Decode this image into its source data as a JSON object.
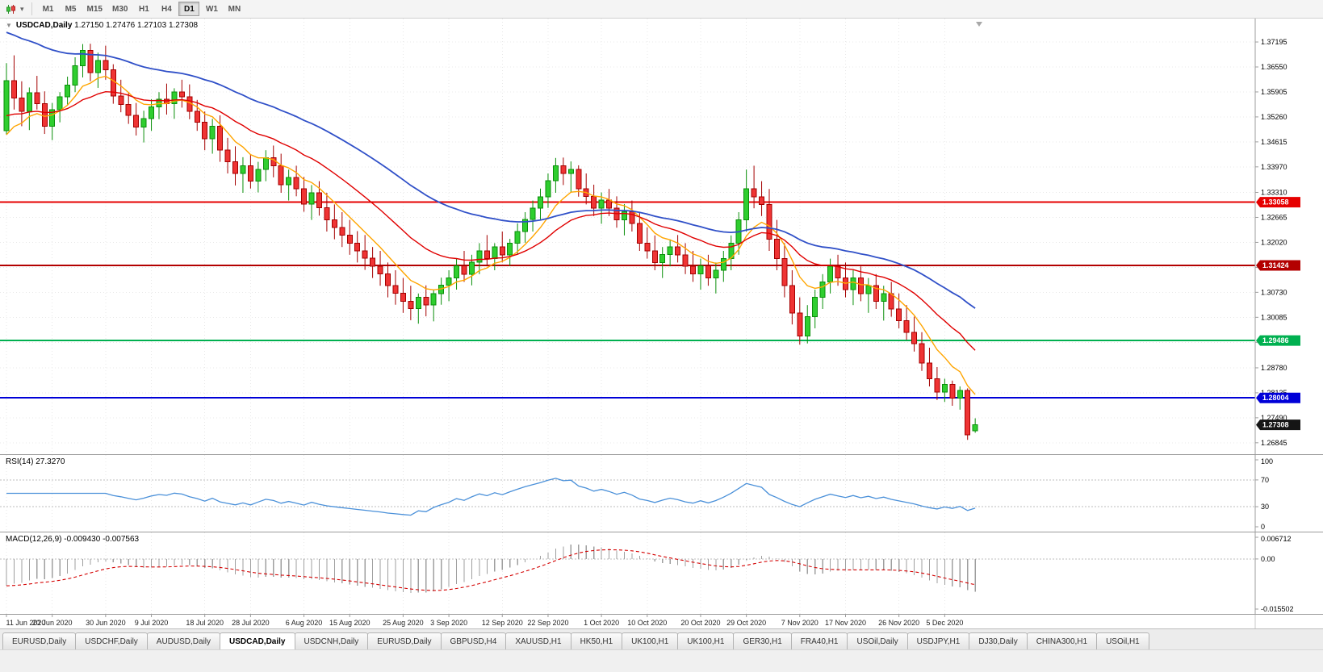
{
  "icons": {
    "one_click_toggle": "▼",
    "dropdown_caret": "▾"
  },
  "toolbar": {
    "timeframes": [
      "M1",
      "M5",
      "M15",
      "M30",
      "H1",
      "H4",
      "D1",
      "W1",
      "MN"
    ],
    "active_timeframe": "D1"
  },
  "main_chart": {
    "title_symbol": "USDCAD,Daily",
    "title_ohlc": "1.27150 1.27476 1.27103 1.27308",
    "price_axis_ticks": [
      "1.37195",
      "1.36550",
      "1.35905",
      "1.35260",
      "1.34615",
      "1.33970",
      "1.33310",
      "1.32665",
      "1.32020",
      "1.31375",
      "1.30730",
      "1.30085",
      "1.29440",
      "1.28780",
      "1.28135",
      "1.27490",
      "1.26845"
    ],
    "price_range": {
      "top": 1.378,
      "bottom": 1.2655
    },
    "hlines": [
      {
        "price": 1.33058,
        "label": "1.33058",
        "color": "#e60000"
      },
      {
        "price": 1.31424,
        "label": "1.31424",
        "color": "#b30000"
      },
      {
        "price": 1.29486,
        "label": "1.29486",
        "color": "#00b050"
      },
      {
        "price": 1.28004,
        "label": "1.28004",
        "color": "#0000d8"
      }
    ],
    "current_price": {
      "value": 1.27308,
      "label": "1.27308",
      "badge_color": "#151515"
    },
    "moving_averages": [
      {
        "period": 8,
        "color": "#ffa500",
        "seed": 1.344,
        "width": 1.4
      },
      {
        "period": 21,
        "color": "#e00000",
        "seed": 1.352,
        "width": 1.4
      },
      {
        "period": 45,
        "color": "#3050c8",
        "seed": 1.375,
        "width": 1.8
      }
    ],
    "colors": {
      "up_fill": "#2fce2f",
      "up_border": "#0a8f0a",
      "down_fill": "#ef3434",
      "down_border": "#a40000",
      "grid": "#e8e8e8"
    }
  },
  "chart_data": {
    "type": "candlestick",
    "symbol": "USDCAD",
    "timeframe": "Daily",
    "ohlc": [
      [
        1.349,
        1.3665,
        1.348,
        1.362
      ],
      [
        1.362,
        1.3685,
        1.3545,
        1.3575
      ],
      [
        1.3575,
        1.3618,
        1.3502,
        1.354
      ],
      [
        1.354,
        1.3602,
        1.3492,
        1.3588
      ],
      [
        1.3588,
        1.3632,
        1.3545,
        1.356
      ],
      [
        1.356,
        1.3592,
        1.3482,
        1.3502
      ],
      [
        1.3502,
        1.3562,
        1.3466,
        1.3545
      ],
      [
        1.3545,
        1.359,
        1.3512,
        1.3578
      ],
      [
        1.3578,
        1.363,
        1.3558,
        1.3608
      ],
      [
        1.3608,
        1.368,
        1.359,
        1.3658
      ],
      [
        1.3658,
        1.3714,
        1.3628,
        1.3698
      ],
      [
        1.3698,
        1.3715,
        1.3618,
        1.364
      ],
      [
        1.364,
        1.3692,
        1.3601,
        1.3672
      ],
      [
        1.3672,
        1.371,
        1.3622,
        1.3648
      ],
      [
        1.3648,
        1.3662,
        1.356,
        1.358
      ],
      [
        1.358,
        1.3622,
        1.3538,
        1.3558
      ],
      [
        1.3558,
        1.359,
        1.3508,
        1.353
      ],
      [
        1.353,
        1.3562,
        1.3478,
        1.35
      ],
      [
        1.35,
        1.3542,
        1.346,
        1.3522
      ],
      [
        1.3522,
        1.3572,
        1.349,
        1.3552
      ],
      [
        1.3552,
        1.359,
        1.352,
        1.3572
      ],
      [
        1.3572,
        1.3612,
        1.3532,
        1.356
      ],
      [
        1.356,
        1.36,
        1.3521,
        1.359
      ],
      [
        1.359,
        1.3622,
        1.355,
        1.3578
      ],
      [
        1.3578,
        1.361,
        1.352,
        1.354
      ],
      [
        1.354,
        1.357,
        1.349,
        1.3512
      ],
      [
        1.3512,
        1.354,
        1.344,
        1.347
      ],
      [
        1.347,
        1.3521,
        1.3431,
        1.3502
      ],
      [
        1.3502,
        1.353,
        1.341,
        1.344
      ],
      [
        1.344,
        1.3472,
        1.338,
        1.341
      ],
      [
        1.341,
        1.345,
        1.3349,
        1.338
      ],
      [
        1.338,
        1.3422,
        1.333,
        1.34
      ],
      [
        1.34,
        1.343,
        1.3341,
        1.336
      ],
      [
        1.336,
        1.341,
        1.3331,
        1.339
      ],
      [
        1.339,
        1.344,
        1.336,
        1.3421
      ],
      [
        1.3421,
        1.3452,
        1.337,
        1.34
      ],
      [
        1.34,
        1.3431,
        1.333,
        1.3351
      ],
      [
        1.3351,
        1.339,
        1.331,
        1.337
      ],
      [
        1.337,
        1.34,
        1.3321,
        1.334
      ],
      [
        1.334,
        1.3371,
        1.3281,
        1.3301
      ],
      [
        1.3301,
        1.335,
        1.326,
        1.333
      ],
      [
        1.333,
        1.336,
        1.3271,
        1.3291
      ],
      [
        1.3291,
        1.333,
        1.323,
        1.326
      ],
      [
        1.326,
        1.33,
        1.321,
        1.324
      ],
      [
        1.324,
        1.328,
        1.319,
        1.3221
      ],
      [
        1.3221,
        1.326,
        1.317,
        1.32
      ],
      [
        1.32,
        1.3231,
        1.315,
        1.318
      ],
      [
        1.318,
        1.3221,
        1.3131,
        1.3161
      ],
      [
        1.3161,
        1.319,
        1.311,
        1.314
      ],
      [
        1.314,
        1.318,
        1.309,
        1.3121
      ],
      [
        1.3121,
        1.315,
        1.306,
        1.309
      ],
      [
        1.309,
        1.313,
        1.3041,
        1.3071
      ],
      [
        1.3071,
        1.311,
        1.302,
        1.305
      ],
      [
        1.305,
        1.309,
        1.3001,
        1.3031
      ],
      [
        1.3031,
        1.307,
        1.2992,
        1.306
      ],
      [
        1.306,
        1.3091,
        1.3011,
        1.304
      ],
      [
        1.304,
        1.308,
        1.2998,
        1.307
      ],
      [
        1.307,
        1.3111,
        1.3041,
        1.3091
      ],
      [
        1.3091,
        1.313,
        1.305,
        1.311
      ],
      [
        1.311,
        1.316,
        1.308,
        1.3141
      ],
      [
        1.3141,
        1.318,
        1.31,
        1.312
      ],
      [
        1.312,
        1.317,
        1.3091,
        1.3151
      ],
      [
        1.3151,
        1.32,
        1.312,
        1.318
      ],
      [
        1.318,
        1.3221,
        1.314,
        1.316
      ],
      [
        1.316,
        1.32,
        1.313,
        1.319
      ],
      [
        1.319,
        1.323,
        1.315,
        1.317
      ],
      [
        1.317,
        1.3211,
        1.3141,
        1.32
      ],
      [
        1.32,
        1.3251,
        1.317,
        1.323
      ],
      [
        1.323,
        1.328,
        1.3201,
        1.3261
      ],
      [
        1.3261,
        1.331,
        1.323,
        1.329
      ],
      [
        1.329,
        1.3341,
        1.326,
        1.332
      ],
      [
        1.332,
        1.338,
        1.3291,
        1.3361
      ],
      [
        1.3361,
        1.342,
        1.333,
        1.34
      ],
      [
        1.34,
        1.3421,
        1.335,
        1.338
      ],
      [
        1.338,
        1.3411,
        1.3331,
        1.339
      ],
      [
        1.339,
        1.3401,
        1.332,
        1.334
      ],
      [
        1.334,
        1.338,
        1.33,
        1.3321
      ],
      [
        1.3321,
        1.3351,
        1.327,
        1.329
      ],
      [
        1.329,
        1.3331,
        1.325,
        1.3311
      ],
      [
        1.3311,
        1.334,
        1.327,
        1.329
      ],
      [
        1.329,
        1.3321,
        1.324,
        1.326
      ],
      [
        1.326,
        1.3301,
        1.322,
        1.3281
      ],
      [
        1.3281,
        1.331,
        1.323,
        1.3251
      ],
      [
        1.3251,
        1.328,
        1.318,
        1.32
      ],
      [
        1.32,
        1.3241,
        1.316,
        1.318
      ],
      [
        1.318,
        1.322,
        1.313,
        1.315
      ],
      [
        1.315,
        1.319,
        1.311,
        1.3171
      ],
      [
        1.3171,
        1.321,
        1.314,
        1.319
      ],
      [
        1.319,
        1.3221,
        1.315,
        1.317
      ],
      [
        1.317,
        1.32,
        1.312,
        1.314
      ],
      [
        1.314,
        1.318,
        1.31,
        1.3121
      ],
      [
        1.3121,
        1.316,
        1.308,
        1.3141
      ],
      [
        1.3141,
        1.317,
        1.309,
        1.311
      ],
      [
        1.311,
        1.315,
        1.307,
        1.313
      ],
      [
        1.313,
        1.318,
        1.31,
        1.316
      ],
      [
        1.316,
        1.322,
        1.313,
        1.32
      ],
      [
        1.32,
        1.328,
        1.317,
        1.326
      ],
      [
        1.326,
        1.339,
        1.323,
        1.334
      ],
      [
        1.334,
        1.34,
        1.329,
        1.332
      ],
      [
        1.332,
        1.336,
        1.327,
        1.33
      ],
      [
        1.33,
        1.334,
        1.318,
        1.321
      ],
      [
        1.321,
        1.326,
        1.313,
        1.316
      ],
      [
        1.316,
        1.32,
        1.306,
        1.309
      ],
      [
        1.309,
        1.313,
        1.299,
        1.302
      ],
      [
        1.302,
        1.306,
        1.2938,
        1.296
      ],
      [
        1.296,
        1.304,
        1.2941,
        1.301
      ],
      [
        1.301,
        1.308,
        1.298,
        1.306
      ],
      [
        1.306,
        1.312,
        1.303,
        1.31
      ],
      [
        1.31,
        1.316,
        1.307,
        1.314
      ],
      [
        1.314,
        1.317,
        1.309,
        1.311
      ],
      [
        1.311,
        1.315,
        1.306,
        1.308
      ],
      [
        1.308,
        1.313,
        1.304,
        1.311
      ],
      [
        1.311,
        1.314,
        1.305,
        1.307
      ],
      [
        1.307,
        1.311,
        1.302,
        1.309
      ],
      [
        1.309,
        1.312,
        1.303,
        1.305
      ],
      [
        1.305,
        1.309,
        1.3,
        1.307
      ],
      [
        1.307,
        1.31,
        1.301,
        1.303
      ],
      [
        1.303,
        1.307,
        1.298,
        1.3
      ],
      [
        1.3,
        1.304,
        1.295,
        1.297
      ],
      [
        1.297,
        1.301,
        1.292,
        1.294
      ],
      [
        1.294,
        1.297,
        1.287,
        1.289
      ],
      [
        1.289,
        1.293,
        1.283,
        1.285
      ],
      [
        1.285,
        1.288,
        1.2795,
        1.2815
      ],
      [
        1.2815,
        1.285,
        1.279,
        1.2835
      ],
      [
        1.2835,
        1.2845,
        1.278,
        1.28
      ],
      [
        1.28,
        1.283,
        1.277,
        1.282
      ],
      [
        1.282,
        1.2825,
        1.2692,
        1.2705
      ],
      [
        1.2715,
        1.27476,
        1.27103,
        1.27308
      ]
    ],
    "date_ticks": [
      {
        "index": 0,
        "label": "11 Jun 2020"
      },
      {
        "index": 6,
        "label": "20 Jun 2020"
      },
      {
        "index": 13,
        "label": "30 Jun 2020"
      },
      {
        "index": 19,
        "label": "9 Jul 2020"
      },
      {
        "index": 26,
        "label": "18 Jul 2020"
      },
      {
        "index": 32,
        "label": "28 Jul 2020"
      },
      {
        "index": 39,
        "label": "6 Aug 2020"
      },
      {
        "index": 45,
        "label": "15 Aug 2020"
      },
      {
        "index": 52,
        "label": "25 Aug 2020"
      },
      {
        "index": 58,
        "label": "3 Sep 2020"
      },
      {
        "index": 65,
        "label": "12 Sep 2020"
      },
      {
        "index": 71,
        "label": "22 Sep 2020"
      },
      {
        "index": 78,
        "label": "1 Oct 2020"
      },
      {
        "index": 84,
        "label": "10 Oct 2020"
      },
      {
        "index": 91,
        "label": "20 Oct 2020"
      },
      {
        "index": 97,
        "label": "29 Oct 2020"
      },
      {
        "index": 104,
        "label": "7 Nov 2020"
      },
      {
        "index": 110,
        "label": "17 Nov 2020"
      },
      {
        "index": 117,
        "label": "26 Nov 2020"
      },
      {
        "index": 123,
        "label": "5 Dec 2020"
      }
    ]
  },
  "rsi_panel": {
    "header": "RSI(14) 27.3270",
    "period": 14,
    "levels": [
      70,
      30
    ],
    "axis_values": [
      {
        "v": 100,
        "label": "100"
      },
      {
        "v": 70,
        "label": "70"
      },
      {
        "v": 30,
        "label": "30"
      },
      {
        "v": 0,
        "label": "0"
      }
    ],
    "line_color": "#4a90d9"
  },
  "macd_panel": {
    "header": "MACD(12,26,9) -0.009430 -0.007563",
    "fast": 12,
    "slow": 26,
    "signal": 9,
    "seed_fast": 1.356,
    "seed_slow": 1.3655,
    "range": {
      "max": 0.006712,
      "min": -0.015502
    },
    "axis_values": [
      {
        "v": 0.006712,
        "label": "0.006712"
      },
      {
        "v": 0,
        "label": "0.00"
      },
      {
        "v": -0.015502,
        "label": "-0.015502"
      }
    ],
    "histogram_color": "#9f9f9f",
    "signal_color": "#d40000"
  },
  "tab_bar": {
    "active_index": 3,
    "tabs": [
      "EURUSD,Daily",
      "USDCHF,Daily",
      "AUDUSD,Daily",
      "USDCAD,Daily",
      "USDCNH,Daily",
      "EURUSD,Daily",
      "GBPUSD,H4",
      "XAUUSD,H1",
      "HK50,H1",
      "UK100,H1",
      "UK100,H1",
      "GER30,H1",
      "FRA40,H1",
      "USOil,Daily",
      "USDJPY,H1",
      "DJ30,Daily",
      "CHINA300,H1",
      "USOil,H1"
    ]
  }
}
